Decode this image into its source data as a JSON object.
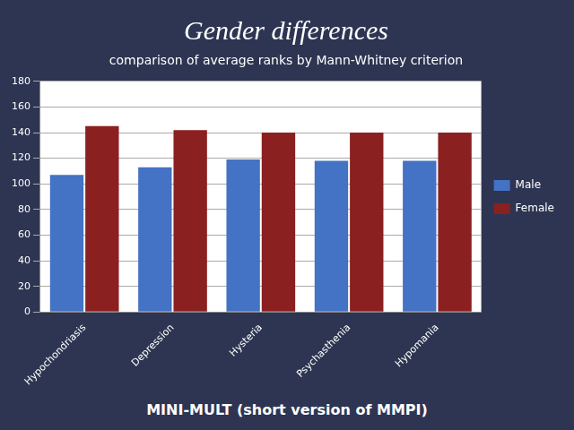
{
  "chart_data": {
    "type": "bar",
    "title": "Gender differences",
    "subtitle": "comparison of average ranks by Mann-Whitney criterion",
    "footnote": "MINI-MULT (short version of MMPI)",
    "categories": [
      "Hypochondriasis",
      "Depression",
      "Hysteria",
      "Psychasthenia",
      "Hypomania"
    ],
    "series": [
      {
        "name": "Male",
        "color": "#4472C4",
        "values": [
          107,
          113,
          119,
          118,
          118
        ]
      },
      {
        "name": "Female",
        "color": "#8B2020",
        "values": [
          145,
          142,
          140,
          140,
          140
        ]
      }
    ],
    "ylim": [
      0,
      180
    ],
    "yticks": [
      0,
      20,
      40,
      60,
      80,
      100,
      120,
      140,
      160,
      180
    ],
    "grid": true,
    "legend": "right"
  }
}
